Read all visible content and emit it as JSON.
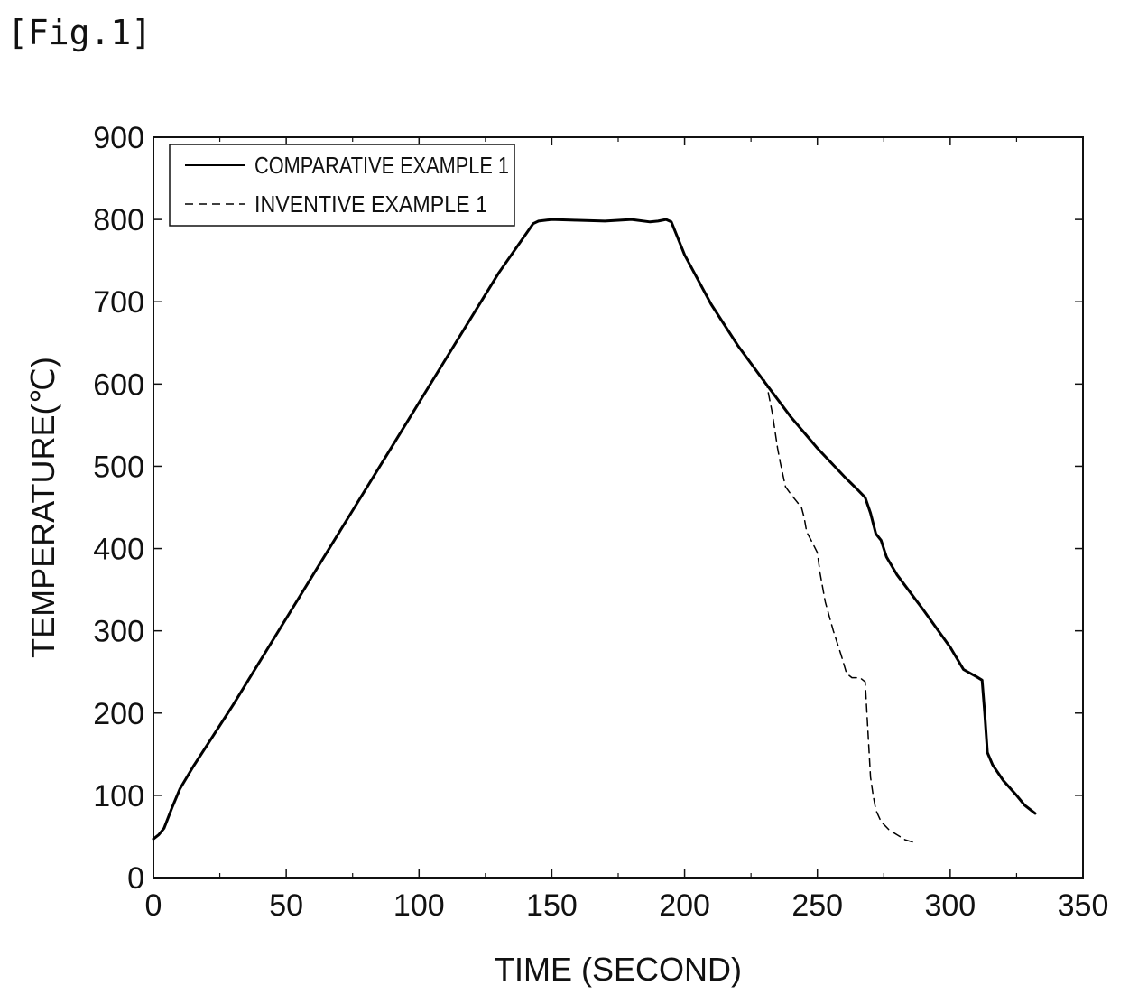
{
  "figure_label": "[Fig.1]",
  "chart_data": {
    "type": "line",
    "xlabel": "TIME (SECOND)",
    "ylabel": "TEMPERATURE(℃)",
    "xlim": [
      0,
      350
    ],
    "ylim": [
      0,
      900
    ],
    "xticks": [
      0,
      50,
      100,
      150,
      200,
      250,
      300,
      350
    ],
    "yticks": [
      0,
      100,
      200,
      300,
      400,
      500,
      600,
      700,
      800,
      900
    ],
    "grid": false,
    "legend_position": "top-left",
    "series": [
      {
        "name": "COMPARATIVE EXAMPLE 1",
        "style": "solid",
        "color": "#000000",
        "points": [
          [
            0,
            47
          ],
          [
            2,
            52
          ],
          [
            4,
            60
          ],
          [
            7,
            85
          ],
          [
            10,
            108
          ],
          [
            15,
            135
          ],
          [
            20,
            160
          ],
          [
            30,
            210
          ],
          [
            50,
            315
          ],
          [
            70,
            420
          ],
          [
            90,
            525
          ],
          [
            110,
            630
          ],
          [
            130,
            735
          ],
          [
            143,
            795
          ],
          [
            145,
            798
          ],
          [
            150,
            800
          ],
          [
            160,
            799
          ],
          [
            170,
            798
          ],
          [
            180,
            800
          ],
          [
            187,
            797
          ],
          [
            190,
            798
          ],
          [
            193,
            800
          ],
          [
            195,
            797
          ],
          [
            200,
            757
          ],
          [
            210,
            697
          ],
          [
            220,
            647
          ],
          [
            230,
            603
          ],
          [
            240,
            560
          ],
          [
            250,
            522
          ],
          [
            260,
            488
          ],
          [
            265,
            472
          ],
          [
            268,
            462
          ],
          [
            270,
            443
          ],
          [
            272,
            418
          ],
          [
            274,
            410
          ],
          [
            276,
            390
          ],
          [
            280,
            368
          ],
          [
            290,
            325
          ],
          [
            300,
            280
          ],
          [
            305,
            253
          ],
          [
            310,
            244
          ],
          [
            312,
            240
          ],
          [
            313,
            200
          ],
          [
            314,
            152
          ],
          [
            316,
            137
          ],
          [
            320,
            118
          ],
          [
            325,
            100
          ],
          [
            328,
            88
          ],
          [
            332,
            78
          ]
        ]
      },
      {
        "name": "INVENTIVE EXAMPLE 1",
        "style": "dashed",
        "color": "#000000",
        "points": [
          [
            230,
            605
          ],
          [
            231,
            598
          ],
          [
            233,
            565
          ],
          [
            235,
            522
          ],
          [
            236,
            505
          ],
          [
            238,
            475
          ],
          [
            240,
            466
          ],
          [
            242,
            458
          ],
          [
            244,
            450
          ],
          [
            245,
            438
          ],
          [
            246,
            420
          ],
          [
            248,
            408
          ],
          [
            250,
            395
          ],
          [
            251,
            370
          ],
          [
            253,
            335
          ],
          [
            256,
            300
          ],
          [
            259,
            270
          ],
          [
            261,
            248
          ],
          [
            263,
            243
          ],
          [
            266,
            243
          ],
          [
            268,
            238
          ],
          [
            269,
            180
          ],
          [
            270,
            122
          ],
          [
            271,
            100
          ],
          [
            272,
            82
          ],
          [
            274,
            68
          ],
          [
            277,
            58
          ],
          [
            280,
            52
          ],
          [
            283,
            46
          ],
          [
            286,
            43
          ]
        ]
      }
    ]
  }
}
